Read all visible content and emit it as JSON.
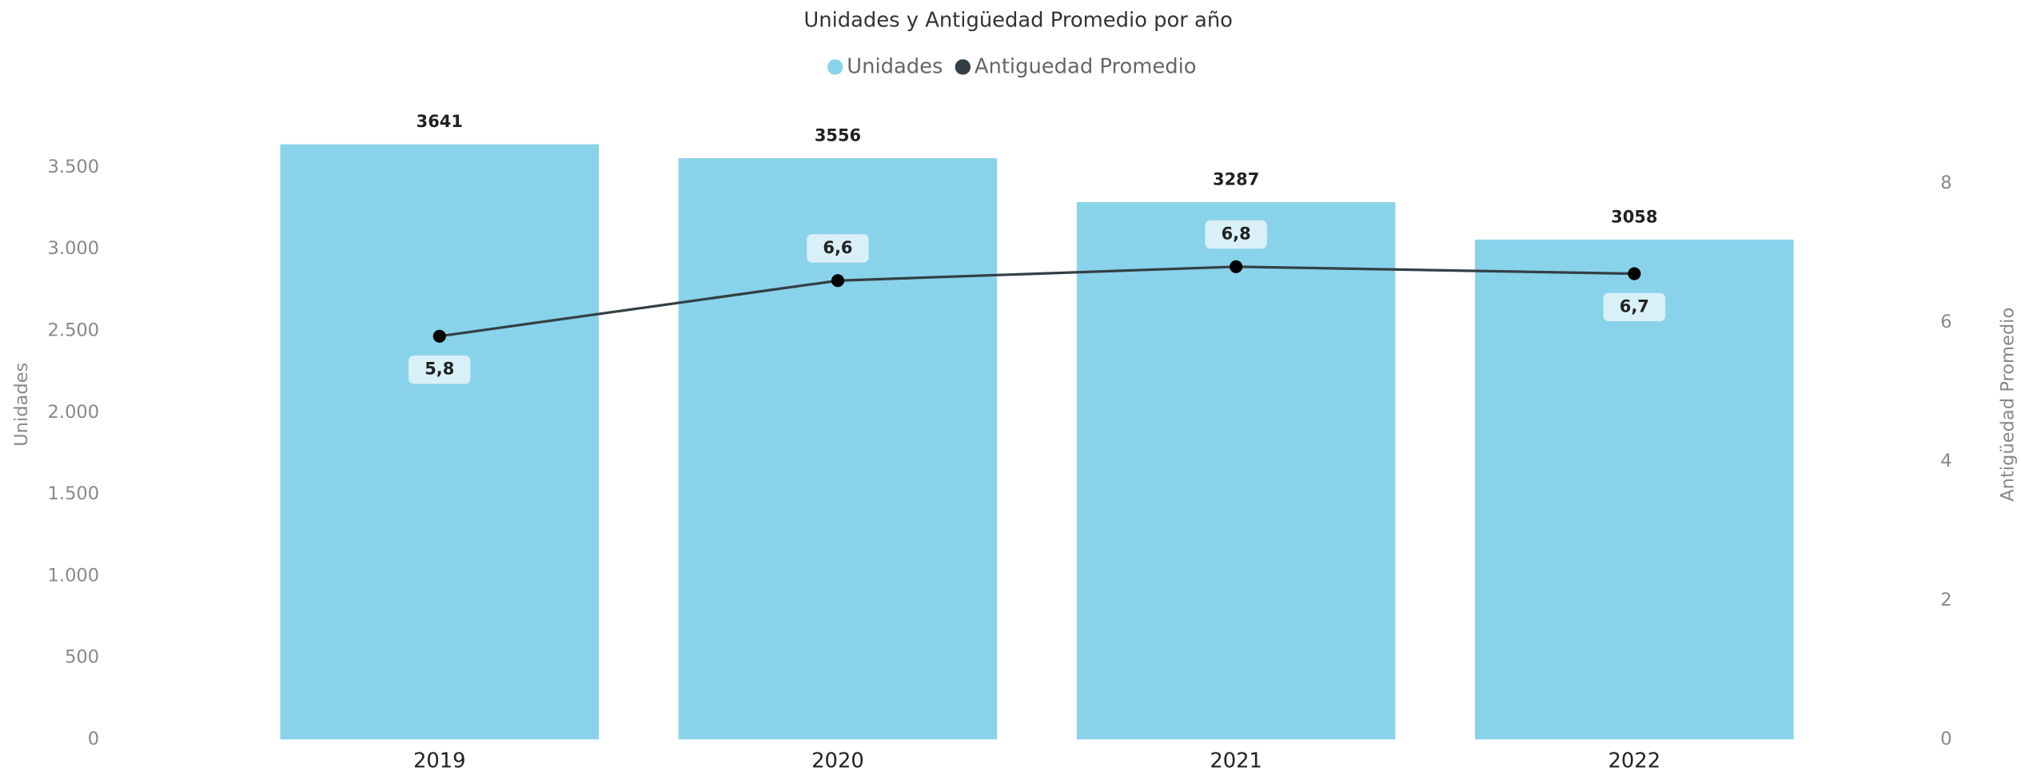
{
  "chart_data": {
    "type": "bar_line",
    "title": "Unidades y Antigüedad Promedio por año",
    "y_label": "Unidades",
    "y2_label": "Antigüedad Promedio",
    "categories": [
      "2019",
      "2020",
      "2021",
      "2022"
    ],
    "series": [
      {
        "name": "Unidades",
        "color": "#89d3ea",
        "type": "bar",
        "values": [
          3641,
          3556,
          3287,
          3058
        ]
      },
      {
        "name": "Antiguedad Promedio",
        "color": "#333f44",
        "type": "line",
        "axis": "y2",
        "values": [
          5.8,
          6.6,
          6.8,
          6.7
        ],
        "value_labels": [
          "5,8",
          "6,6",
          "6,8",
          "6,7"
        ]
      }
    ],
    "ylim": [
      0,
      3700
    ],
    "yticks": [
      0,
      500,
      {
        "value": 1000,
        "label": "1.000"
      },
      {
        "value": 1500,
        "label": "1.500"
      },
      {
        "value": 2000,
        "label": "2.000"
      },
      {
        "value": 2500,
        "label": "2.500"
      },
      {
        "value": 3000,
        "label": "3.000"
      },
      {
        "value": 3500,
        "label": "3.500"
      }
    ],
    "y2lim": [
      0,
      8.7
    ],
    "y2ticks": [
      0,
      2,
      4,
      6,
      8
    ],
    "legend": "top"
  }
}
